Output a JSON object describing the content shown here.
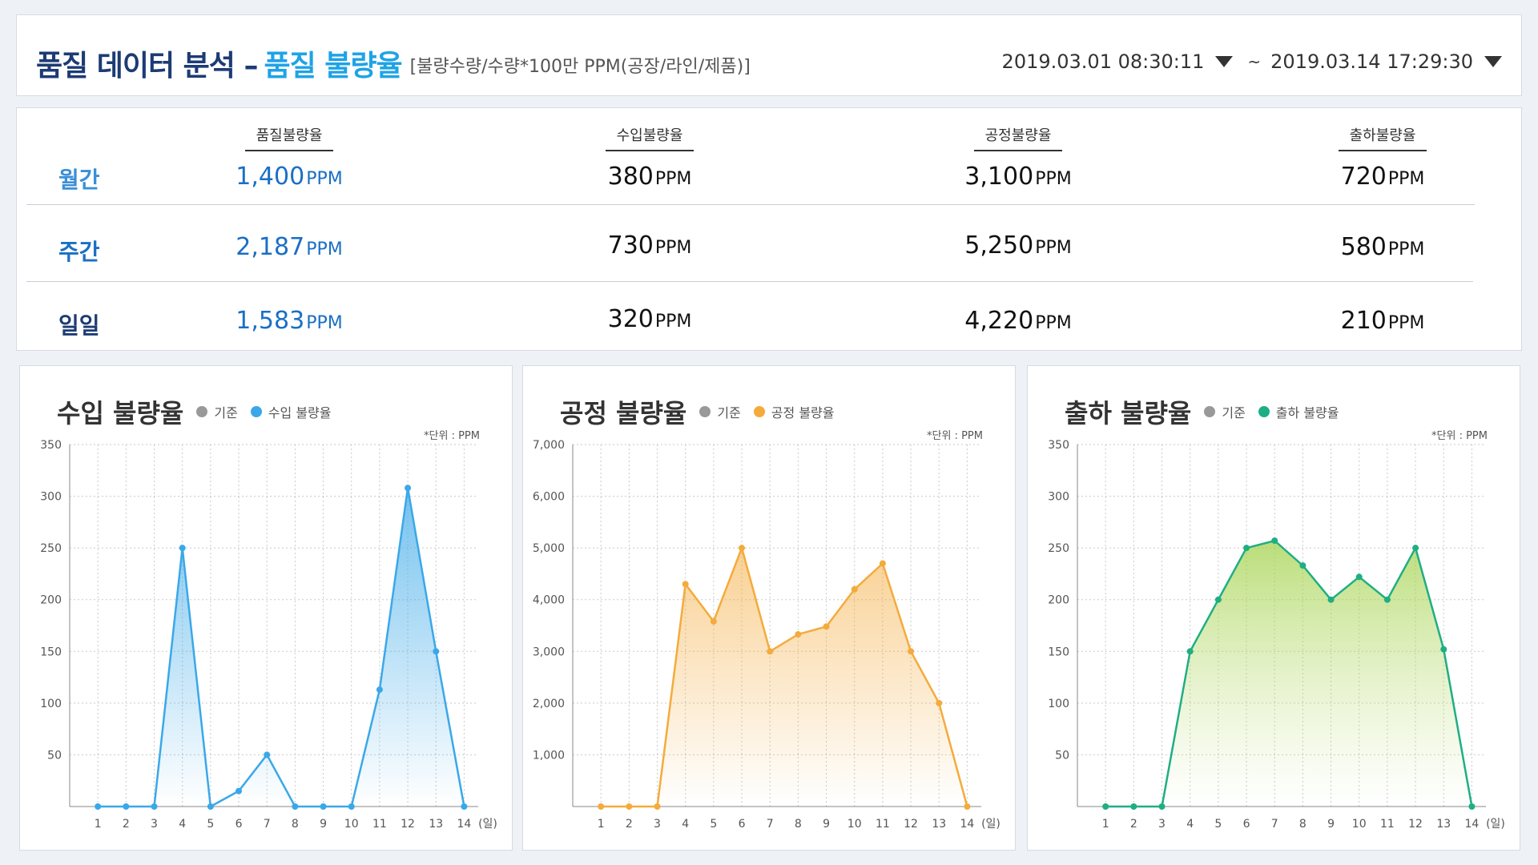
{
  "header": {
    "title_main": "품질 데이터 분석 –",
    "title_accent": "품질 불량율",
    "title_note": "[불량수량/수량*100만 PPM(공장/라인/제품)]",
    "date_from": "2019.03.01 08:30:11",
    "date_sep": "~",
    "date_to": "2019.03.14 17:29:30"
  },
  "summary": {
    "unit": "PPM",
    "columns": [
      "품질불량율",
      "수입불량율",
      "공정불량율",
      "출하불량율"
    ],
    "rows": [
      {
        "label": "월간",
        "values": [
          "1,400",
          "380",
          "3,100",
          "720"
        ]
      },
      {
        "label": "주간",
        "values": [
          "2,187",
          "730",
          "5,250",
          "580"
        ]
      },
      {
        "label": "일일",
        "values": [
          "1,583",
          "320",
          "4,220",
          "210"
        ]
      }
    ]
  },
  "charts": [
    {
      "title": "수입 불량율",
      "legend_base": "기준",
      "legend_series": "수입 불량율",
      "unit_note": "*단위 : PPM",
      "color": "#3aa8e8"
    },
    {
      "title": "공정 불량율",
      "legend_base": "기준",
      "legend_series": "공정 불량율",
      "unit_note": "*단위 : PPM",
      "color": "#f4ab3c"
    },
    {
      "title": "출하 불량율",
      "legend_base": "기준",
      "legend_series": "출하 불량율",
      "unit_note": "*단위 : PPM",
      "color": "#1fae84"
    }
  ],
  "colors": {
    "legend_base": "#999999",
    "title_dark": "#1d3b74",
    "title_accent": "#1ea3e6",
    "row_label_1": "#3a8fd6",
    "row_label_2": "#1a6fc4",
    "row_label_3": "#1d3b74",
    "quality_value": "#1a6fc4"
  },
  "chart_data": [
    {
      "type": "area",
      "title": "수입 불량율",
      "x": [
        1,
        2,
        3,
        4,
        5,
        6,
        7,
        8,
        9,
        10,
        11,
        12,
        13,
        14
      ],
      "x_unit": "(일)",
      "ylim": [
        0,
        350
      ],
      "yticks": [
        50,
        100,
        150,
        200,
        250,
        300,
        350
      ],
      "ytick_labels": [
        "50",
        "100",
        "150",
        "200",
        "250",
        "300",
        "350"
      ],
      "series": [
        {
          "name": "수입 불량율",
          "values": [
            0,
            0,
            0,
            250,
            0,
            15,
            50,
            0,
            0,
            0,
            113,
            308,
            150,
            0
          ]
        }
      ],
      "fill": "gradient",
      "grid": true
    },
    {
      "type": "area",
      "title": "공정 불량율",
      "x": [
        1,
        2,
        3,
        4,
        5,
        6,
        7,
        8,
        9,
        10,
        11,
        12,
        13,
        14
      ],
      "x_unit": "(일)",
      "ylim": [
        0,
        7000
      ],
      "yticks": [
        1000,
        2000,
        3000,
        4000,
        5000,
        6000,
        7000
      ],
      "ytick_labels": [
        "1,000",
        "2,000",
        "3,000",
        "4,000",
        "5,000",
        "6,000",
        "7,000"
      ],
      "series": [
        {
          "name": "공정 불량율",
          "values": [
            0,
            0,
            0,
            4300,
            3580,
            5000,
            3000,
            3330,
            3480,
            4200,
            4700,
            3000,
            2000,
            0
          ]
        }
      ],
      "fill": "gradient",
      "grid": true
    },
    {
      "type": "area",
      "title": "출하 불량율",
      "x": [
        1,
        2,
        3,
        4,
        5,
        6,
        7,
        8,
        9,
        10,
        11,
        12,
        13,
        14
      ],
      "x_unit": "(일)",
      "ylim": [
        0,
        350
      ],
      "yticks": [
        50,
        100,
        150,
        200,
        250,
        300,
        350
      ],
      "ytick_labels": [
        "50",
        "100",
        "150",
        "200",
        "250",
        "300",
        "350"
      ],
      "series": [
        {
          "name": "출하 불량율",
          "values": [
            0,
            0,
            0,
            150,
            200,
            250,
            257,
            233,
            200,
            222,
            200,
            250,
            152,
            0
          ]
        }
      ],
      "fill": "gradient",
      "grid": true
    }
  ]
}
